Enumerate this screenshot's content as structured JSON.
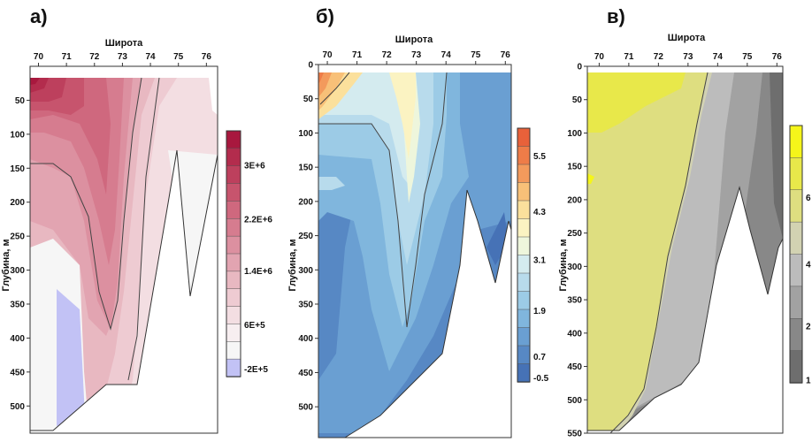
{
  "chart_data": [
    {
      "type": "heatmap",
      "panel_label": "а)",
      "xlabel": "Широта",
      "ylabel": "Глубина, м",
      "x_ticks": [
        70,
        71,
        72,
        73,
        74,
        75,
        76
      ],
      "y_ticks": [
        50,
        100,
        150,
        200,
        250,
        300,
        350,
        400,
        450,
        500
      ],
      "xlim": [
        69.7,
        76.4
      ],
      "ylim": [
        0,
        540
      ],
      "colorbar_labels": [
        "3E+6",
        "2.2E+6",
        "1.4E+6",
        "6E+5",
        "-2E+5"
      ],
      "colorbar_colors": [
        "#a8183e",
        "#b32c4d",
        "#bd405d",
        "#c7546d",
        "#cf687e",
        "#d67c8f",
        "#dc90a0",
        "#e2a4b1",
        "#e8b8c1",
        "#eecbd2",
        "#f3dee2",
        "#f7eef0",
        "#f6f6f6",
        "#c2c2f5"
      ],
      "colorbar_ticks": [
        0.5,
        0.64,
        0.81,
        0.93
      ]
    },
    {
      "type": "heatmap",
      "panel_label": "б)",
      "xlabel": "Широта",
      "ylabel": "Глубина, м",
      "x_ticks": [
        70,
        71,
        72,
        73,
        74,
        75,
        76
      ],
      "y_ticks": [
        0,
        50,
        100,
        150,
        200,
        250,
        300,
        350,
        400,
        450,
        500
      ],
      "xlim": [
        69.7,
        76.2
      ],
      "ylim": [
        0,
        545
      ],
      "colorbar_labels": [
        "5.5",
        "4.3",
        "3.1",
        "1.9",
        "0.7",
        "-0.5"
      ],
      "colorbar_colors": [
        "#e8613a",
        "#ee7c48",
        "#f39a5c",
        "#f8c078",
        "#fbe09c",
        "#fbf3c2",
        "#eef6dc",
        "#d4ebef",
        "#b8dbec",
        "#9ccbe6",
        "#80b6dd",
        "#6a9fd2",
        "#5788c4",
        "#4672b6"
      ],
      "colorbar_ticks": []
    },
    {
      "type": "heatmap",
      "panel_label": "в)",
      "xlabel": "Широта",
      "ylabel": "Глубина, м",
      "x_ticks": [
        70,
        71,
        72,
        73,
        74,
        75,
        76
      ],
      "y_ticks": [
        0,
        50,
        100,
        150,
        200,
        250,
        300,
        350,
        400,
        450,
        500,
        550
      ],
      "xlim": [
        69.6,
        76.2
      ],
      "ylim": [
        0,
        550
      ],
      "colorbar_labels": [
        "6",
        "4",
        "2",
        "1"
      ],
      "colorbar_colors": [
        "#f5f51a",
        "#e8e84a",
        "#dede80",
        "#d2d2b2",
        "#bcbcbc",
        "#a2a2a2",
        "#888888",
        "#6e6e6e"
      ],
      "colorbar_ticks": []
    }
  ]
}
